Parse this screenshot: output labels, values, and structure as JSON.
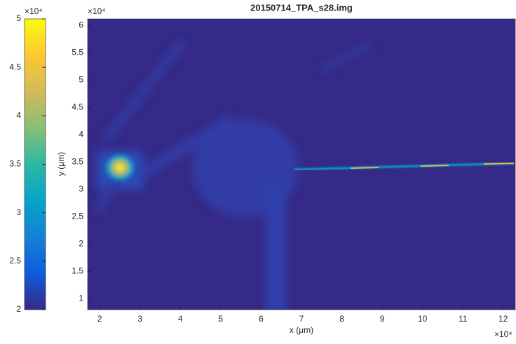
{
  "chart_data": {
    "type": "heatmap",
    "title": "20150714_TPA_s28.img",
    "x_label": "x (μm)",
    "y_label": "y (μm)",
    "xlim": [
      17000,
      123000
    ],
    "ylim": [
      8000,
      61200
    ],
    "x_exponent_label": "×10⁴",
    "y_exponent_label": "×10⁴",
    "xticks": [
      {
        "value": 20000,
        "label": "2"
      },
      {
        "value": 30000,
        "label": "3"
      },
      {
        "value": 40000,
        "label": "4"
      },
      {
        "value": 50000,
        "label": "5"
      },
      {
        "value": 60000,
        "label": "6"
      },
      {
        "value": 70000,
        "label": "7"
      },
      {
        "value": 80000,
        "label": "8"
      },
      {
        "value": 90000,
        "label": "9"
      },
      {
        "value": 100000,
        "label": "10"
      },
      {
        "value": 110000,
        "label": "11"
      },
      {
        "value": 120000,
        "label": "12"
      }
    ],
    "yticks": [
      {
        "value": 10000,
        "label": "1"
      },
      {
        "value": 15000,
        "label": "1.5"
      },
      {
        "value": 20000,
        "label": "2"
      },
      {
        "value": 25000,
        "label": "2.5"
      },
      {
        "value": 30000,
        "label": "3"
      },
      {
        "value": 35000,
        "label": "3.5"
      },
      {
        "value": 40000,
        "label": "4"
      },
      {
        "value": 45000,
        "label": "4.5"
      },
      {
        "value": 50000,
        "label": "5"
      },
      {
        "value": 55000,
        "label": "5.5"
      },
      {
        "value": 60000,
        "label": "6"
      }
    ],
    "colorbar": {
      "lim": [
        20000,
        50000
      ],
      "exponent_label": "×10⁴",
      "ticks": [
        {
          "value": 20000,
          "label": "2"
        },
        {
          "value": 25000,
          "label": "2.5"
        },
        {
          "value": 30000,
          "label": "3"
        },
        {
          "value": 35000,
          "label": "3.5"
        },
        {
          "value": 40000,
          "label": "4"
        },
        {
          "value": 45000,
          "label": "4.5"
        },
        {
          "value": 50000,
          "label": "5"
        }
      ]
    },
    "colormap": [
      "#352a87",
      "#0f5cdd",
      "#1481d6",
      "#06a4ca",
      "#2eb7a4",
      "#87bf77",
      "#d1bb59",
      "#fec832",
      "#f9fb0e"
    ]
  }
}
